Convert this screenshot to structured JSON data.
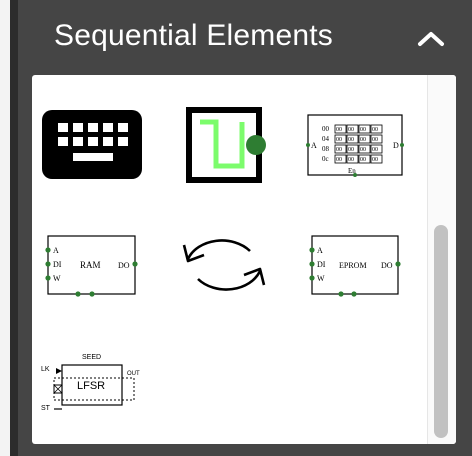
{
  "header": {
    "title": "Sequential Elements",
    "collapse_icon": "chevron-up-icon"
  },
  "colors": {
    "header_bg": "#454545",
    "panel_bg": "#ffffff",
    "led_green": "#7cfc6c",
    "pin_green": "#2e7d32",
    "scrollbar_thumb": "#c1c1c1"
  },
  "elements": {
    "keyboard": {
      "icon": "keyboard-icon"
    },
    "clock": {
      "icon": "clock-square-wave-icon"
    },
    "rom": {
      "address_label": "A",
      "data_label": "D",
      "enable_label": "En",
      "rows": [
        "00",
        "04",
        "08",
        "0c"
      ],
      "cell": "00"
    },
    "ram": {
      "label": "RAM",
      "pin_a": "A",
      "pin_di": "DI",
      "pin_w": "W",
      "pin_do": "DO"
    },
    "tflipflop": {
      "icon": "refresh-arrows-icon"
    },
    "eprom": {
      "label": "EPROM",
      "pin_a": "A",
      "pin_di": "DI",
      "pin_w": "W",
      "pin_do": "DO"
    },
    "lfsr": {
      "label": "LFSR",
      "seed_label": "SEED",
      "out_label": "OUT",
      "clk_label": "LK",
      "rst_label": "ST"
    }
  }
}
